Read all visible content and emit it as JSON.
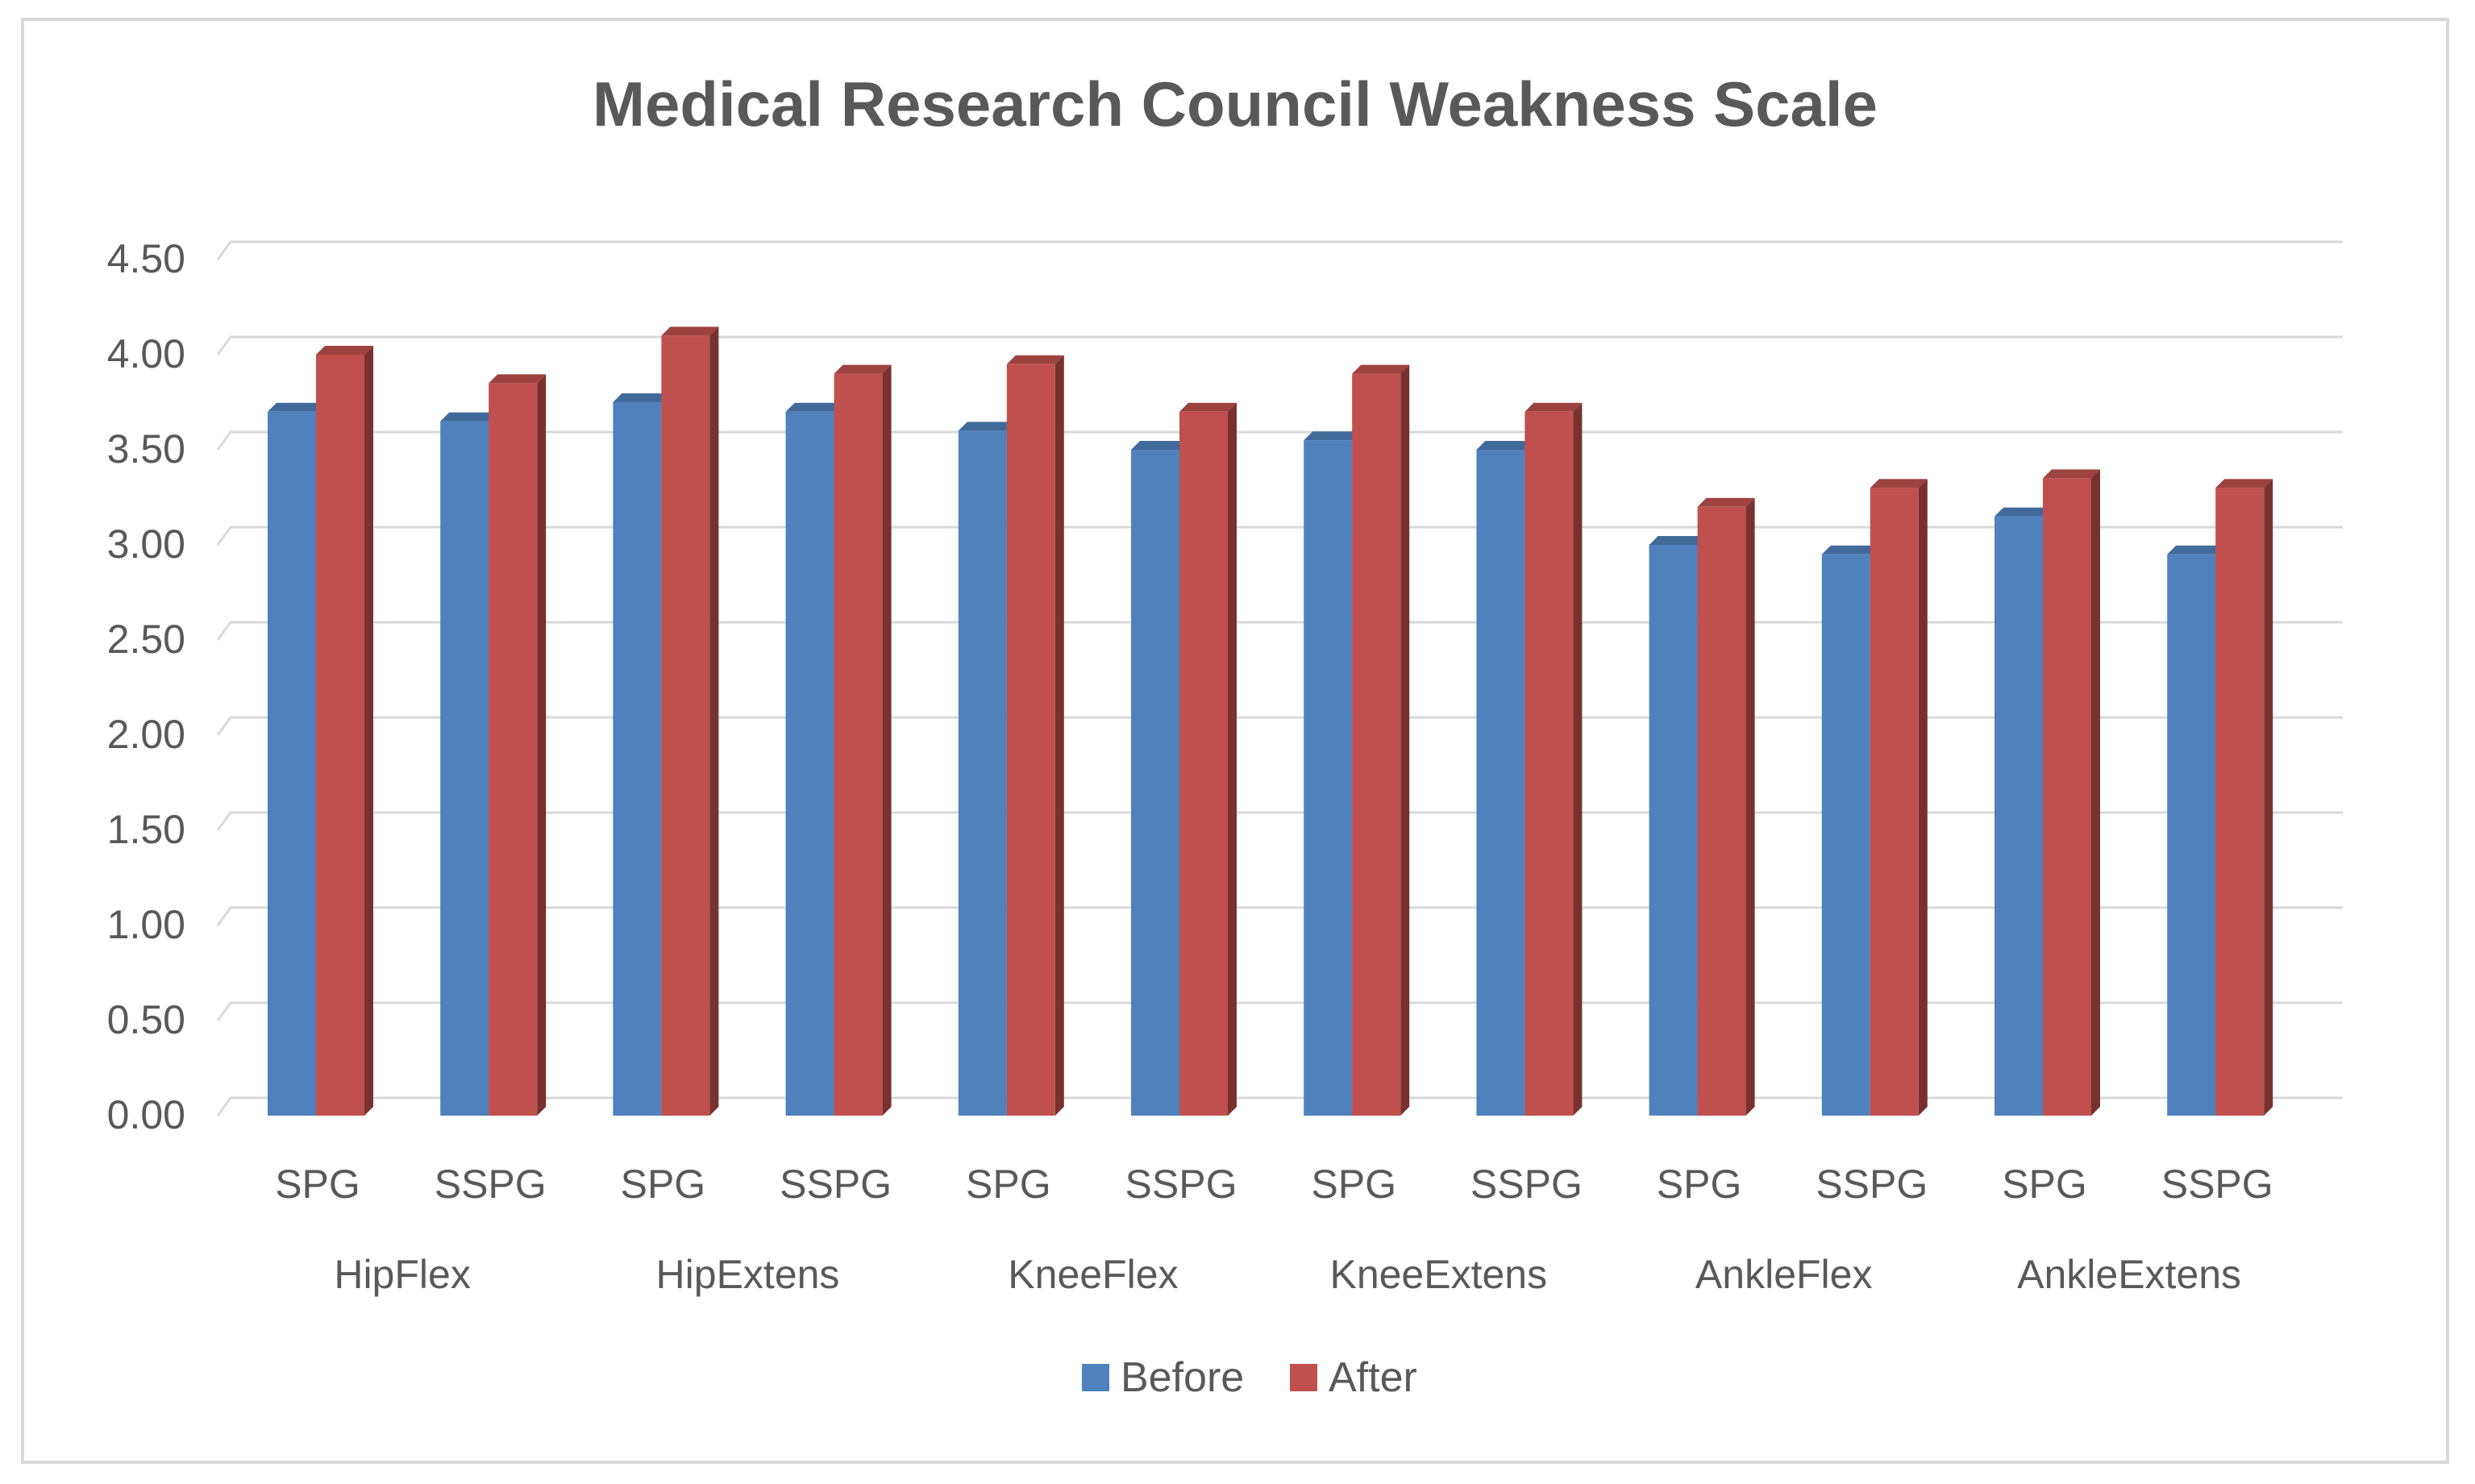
{
  "chart_data": {
    "type": "bar",
    "title": "Medical Research Council Weakness Scale",
    "xlabel": "",
    "ylabel": "",
    "ylim": [
      0,
      4.5
    ],
    "ytick_step": 0.5,
    "ytick_labels": [
      "0.00",
      "0.50",
      "1.00",
      "1.50",
      "2.00",
      "2.50",
      "3.00",
      "3.50",
      "4.00",
      "4.50"
    ],
    "groups": [
      "HipFlex",
      "HipExtens",
      "KneeFlex",
      "KneeExtens",
      "AnkleFlex",
      "AnkleExtens"
    ],
    "subcategories": [
      "SPG",
      "SSPG",
      "SPG",
      "SSPG",
      "SPG",
      "SSPG",
      "SPG",
      "SSPG",
      "SPG",
      "SSPG",
      "SPG",
      "SSPG"
    ],
    "series": [
      {
        "name": "Before",
        "color": "#4f81bd",
        "values": [
          3.7,
          3.65,
          3.75,
          3.7,
          3.6,
          3.5,
          3.55,
          3.5,
          3.0,
          2.95,
          3.15,
          2.95
        ]
      },
      {
        "name": "After",
        "color": "#c0504d",
        "values": [
          4.0,
          3.85,
          4.1,
          3.9,
          3.95,
          3.7,
          3.9,
          3.7,
          3.2,
          3.3,
          3.35,
          3.3
        ]
      }
    ],
    "legend_position": "bottom",
    "grid": true
  }
}
